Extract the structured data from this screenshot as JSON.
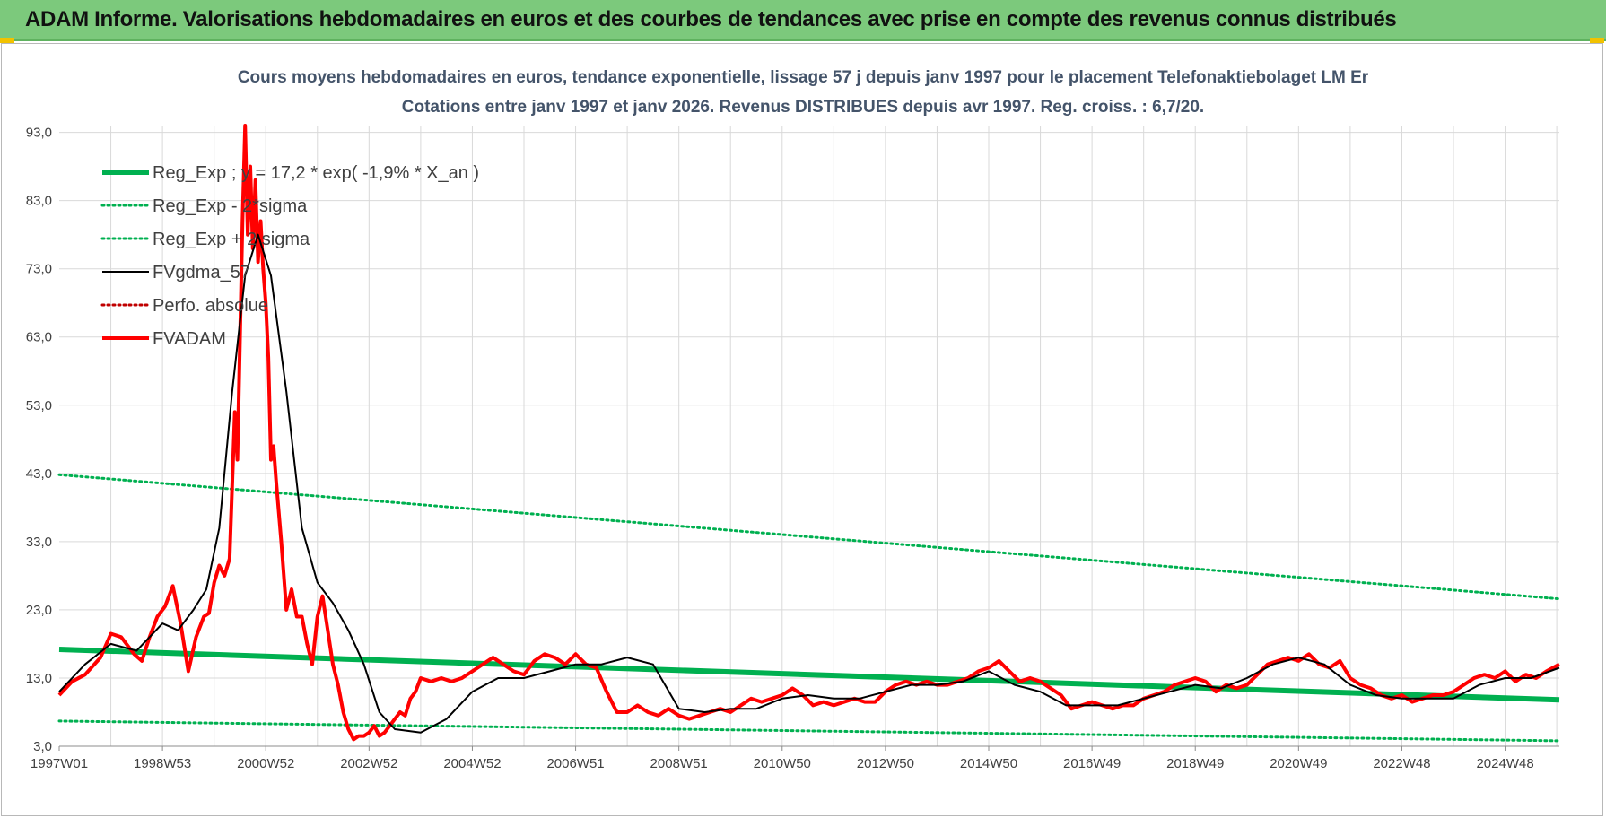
{
  "header": {
    "banner_title": "ADAM Informe. Valorisations hebdomadaires en euros et des courbes de tendances avec prise en compte des revenus connus distribués"
  },
  "colors": {
    "banner_bg": "#7cc97c",
    "reg_exp": "#00b050",
    "fvgdma": "#000000",
    "perfo": "#c00000",
    "fvadam": "#ff0000",
    "grid": "#d9d9d9"
  },
  "chart_data": {
    "type": "line",
    "title_lines": [
      "Cours moyens hebdomadaires en euros, tendance exponentielle, lissage 57 j depuis janv 1997  pour le placement Telefonaktiebolaget LM Er",
      "Cotations entre janv 1997 et janv 2026. Revenus DISTRIBUES depuis avr 1997. Reg. croiss. : 6,7/20."
    ],
    "x_range_years": [
      1997.0,
      2026.05
    ],
    "ylim": [
      3.0,
      94.0
    ],
    "y_ticks": [
      3.0,
      13.0,
      23.0,
      33.0,
      43.0,
      53.0,
      63.0,
      73.0,
      83.0,
      93.0
    ],
    "y_tick_labels": [
      "3,0",
      "13,0",
      "23,0",
      "33,0",
      "43,0",
      "53,0",
      "63,0",
      "73,0",
      "83,0",
      "93,0"
    ],
    "x_ticks": [
      {
        "label": "1997W01",
        "year": 1997.0
      },
      {
        "label": "1998W53",
        "year": 1999.0
      },
      {
        "label": "2000W52",
        "year": 2001.0
      },
      {
        "label": "2002W52",
        "year": 2003.0
      },
      {
        "label": "2004W52",
        "year": 2005.0
      },
      {
        "label": "2006W51",
        "year": 2007.0
      },
      {
        "label": "2008W51",
        "year": 2009.0
      },
      {
        "label": "2010W50",
        "year": 2011.0
      },
      {
        "label": "2012W50",
        "year": 2013.0
      },
      {
        "label": "2014W50",
        "year": 2015.0
      },
      {
        "label": "2016W49",
        "year": 2017.0
      },
      {
        "label": "2018W49",
        "year": 2019.0
      },
      {
        "label": "2020W49",
        "year": 2021.0
      },
      {
        "label": "2022W48",
        "year": 2023.0
      },
      {
        "label": "2024W48",
        "year": 2025.0
      }
    ],
    "grid": true,
    "legend_position": "top-left",
    "series": [
      {
        "name": "Reg_Exp ; y = 17,2 * exp( -1,9% *  X_an )",
        "style": "solid-thick",
        "color": "#00b050",
        "x": [
          1997.0,
          2026.05
        ],
        "y": [
          17.2,
          9.8
        ]
      },
      {
        "name": "Reg_Exp - 2*sigma",
        "style": "dotted",
        "color": "#00b050",
        "x": [
          1997.0,
          2026.05
        ],
        "y": [
          6.7,
          3.8
        ]
      },
      {
        "name": "Reg_Exp + 2 sigma",
        "style": "dotted",
        "color": "#00b050",
        "x": [
          1997.0,
          2026.05
        ],
        "y": [
          42.8,
          24.6
        ]
      },
      {
        "name": "FVgdma_57",
        "style": "solid-thin",
        "color": "#000000",
        "x": [
          1997.0,
          1997.5,
          1998.0,
          1998.5,
          1999.0,
          1999.3,
          1999.6,
          1999.85,
          2000.1,
          2000.35,
          2000.6,
          2000.85,
          2001.1,
          2001.4,
          2001.7,
          2002.0,
          2002.3,
          2002.6,
          2002.9,
          2003.2,
          2003.5,
          2004.0,
          2004.5,
          2005.0,
          2005.5,
          2006.0,
          2006.5,
          2007.0,
          2007.5,
          2008.0,
          2008.5,
          2009.0,
          2009.5,
          2010.0,
          2010.5,
          2011.0,
          2011.5,
          2012.0,
          2012.5,
          2013.0,
          2013.5,
          2014.0,
          2014.5,
          2015.0,
          2015.5,
          2016.0,
          2016.5,
          2017.0,
          2017.5,
          2018.0,
          2018.5,
          2019.0,
          2019.5,
          2020.0,
          2020.5,
          2021.0,
          2021.5,
          2022.0,
          2022.5,
          2023.0,
          2023.5,
          2024.0,
          2024.5,
          2025.0,
          2025.5,
          2026.05
        ],
        "y": [
          11.0,
          15.0,
          18.0,
          17.0,
          21.0,
          20.0,
          23.0,
          26.0,
          35.0,
          55.0,
          72.0,
          78.0,
          72.0,
          55.0,
          35.0,
          27.0,
          24.0,
          20.0,
          15.0,
          8.0,
          5.5,
          5.0,
          7.0,
          11.0,
          13.0,
          13.0,
          14.0,
          15.0,
          15.0,
          16.0,
          15.0,
          8.5,
          8.0,
          8.5,
          8.5,
          10.0,
          10.5,
          10.0,
          10.0,
          11.0,
          12.0,
          12.0,
          12.5,
          14.0,
          12.0,
          11.0,
          9.0,
          9.0,
          9.0,
          10.0,
          11.0,
          12.0,
          11.5,
          13.0,
          15.0,
          16.0,
          15.0,
          12.0,
          10.5,
          10.0,
          10.0,
          10.0,
          12.0,
          13.0,
          13.0,
          14.5
        ]
      },
      {
        "name": "Perfo. absolue",
        "style": "dotted",
        "color": "#c00000",
        "x": [],
        "y": []
      },
      {
        "name": "FVADAM",
        "style": "solid-thick",
        "color": "#ff0000",
        "x": [
          1997.0,
          1997.25,
          1997.5,
          1997.8,
          1998.0,
          1998.2,
          1998.45,
          1998.6,
          1998.75,
          1998.9,
          1999.05,
          1999.2,
          1999.35,
          1999.5,
          1999.65,
          1999.8,
          1999.9,
          2000.0,
          2000.1,
          2000.2,
          2000.3,
          2000.4,
          2000.45,
          2000.5,
          2000.55,
          2000.6,
          2000.65,
          2000.7,
          2000.75,
          2000.8,
          2000.85,
          2000.9,
          2000.95,
          2001.0,
          2001.05,
          2001.1,
          2001.15,
          2001.2,
          2001.3,
          2001.4,
          2001.5,
          2001.6,
          2001.7,
          2001.8,
          2001.9,
          2002.0,
          2002.1,
          2002.2,
          2002.3,
          2002.4,
          2002.5,
          2002.6,
          2002.7,
          2002.8,
          2002.9,
          2003.0,
          2003.1,
          2003.2,
          2003.3,
          2003.4,
          2003.5,
          2003.6,
          2003.7,
          2003.8,
          2003.9,
          2004.0,
          2004.2,
          2004.4,
          2004.6,
          2004.8,
          2005.0,
          2005.2,
          2005.4,
          2005.6,
          2005.8,
          2006.0,
          2006.2,
          2006.4,
          2006.6,
          2006.8,
          2007.0,
          2007.2,
          2007.4,
          2007.6,
          2007.8,
          2008.0,
          2008.2,
          2008.4,
          2008.6,
          2008.8,
          2009.0,
          2009.2,
          2009.4,
          2009.6,
          2009.8,
          2010.0,
          2010.2,
          2010.4,
          2010.6,
          2010.8,
          2011.0,
          2011.2,
          2011.4,
          2011.6,
          2011.8,
          2012.0,
          2012.2,
          2012.4,
          2012.6,
          2012.8,
          2013.0,
          2013.2,
          2013.4,
          2013.6,
          2013.8,
          2014.0,
          2014.2,
          2014.4,
          2014.6,
          2014.8,
          2015.0,
          2015.2,
          2015.4,
          2015.6,
          2015.8,
          2016.0,
          2016.2,
          2016.4,
          2016.6,
          2016.8,
          2017.0,
          2017.2,
          2017.4,
          2017.6,
          2017.8,
          2018.0,
          2018.2,
          2018.4,
          2018.6,
          2018.8,
          2019.0,
          2019.2,
          2019.4,
          2019.6,
          2019.8,
          2020.0,
          2020.2,
          2020.4,
          2020.6,
          2020.8,
          2021.0,
          2021.2,
          2021.4,
          2021.6,
          2021.8,
          2022.0,
          2022.2,
          2022.4,
          2022.6,
          2022.8,
          2023.0,
          2023.2,
          2023.4,
          2023.6,
          2023.8,
          2024.0,
          2024.2,
          2024.4,
          2024.6,
          2024.8,
          2025.0,
          2025.2,
          2025.4,
          2025.6,
          2025.8,
          2026.05
        ],
        "y": [
          10.5,
          12.5,
          13.5,
          16.0,
          19.5,
          19.0,
          16.5,
          15.5,
          19.0,
          22.0,
          23.5,
          26.5,
          21.0,
          14.0,
          19.0,
          22.0,
          22.5,
          27.0,
          29.5,
          28.0,
          30.5,
          52.0,
          45.0,
          62.0,
          80.0,
          94.0,
          78.0,
          88.0,
          76.0,
          86.0,
          74.0,
          80.0,
          73.0,
          68.0,
          60.0,
          45.0,
          47.0,
          42.0,
          33.0,
          23.0,
          26.0,
          22.0,
          22.0,
          18.0,
          15.0,
          22.0,
          25.0,
          20.0,
          15.0,
          12.0,
          8.0,
          5.5,
          4.0,
          4.5,
          4.5,
          5.0,
          6.0,
          4.5,
          5.0,
          6.0,
          7.0,
          8.0,
          7.5,
          10.0,
          11.0,
          13.0,
          12.5,
          13.0,
          12.5,
          13.0,
          14.0,
          15.0,
          16.0,
          15.0,
          14.0,
          13.5,
          15.5,
          16.5,
          16.0,
          15.0,
          16.5,
          15.0,
          14.5,
          11.0,
          8.0,
          8.0,
          9.0,
          8.0,
          7.5,
          8.5,
          7.5,
          7.0,
          7.5,
          8.0,
          8.5,
          8.0,
          9.0,
          10.0,
          9.5,
          10.0,
          10.5,
          11.5,
          10.5,
          9.0,
          9.5,
          9.0,
          9.5,
          10.0,
          9.5,
          9.5,
          11.0,
          12.0,
          12.5,
          12.0,
          12.5,
          12.0,
          12.0,
          12.5,
          13.0,
          14.0,
          14.5,
          15.5,
          14.0,
          12.5,
          13.0,
          12.5,
          11.5,
          10.5,
          8.5,
          9.0,
          9.5,
          9.0,
          8.5,
          9.0,
          9.0,
          10.0,
          10.5,
          11.0,
          12.0,
          12.5,
          13.0,
          12.5,
          11.0,
          12.0,
          11.5,
          12.0,
          13.5,
          15.0,
          15.5,
          16.0,
          15.5,
          16.5,
          15.0,
          14.5,
          15.5,
          13.0,
          12.0,
          11.5,
          10.5,
          10.0,
          10.5,
          9.5,
          10.0,
          10.5,
          10.5,
          11.0,
          12.0,
          13.0,
          13.5,
          13.0,
          14.0,
          12.5,
          13.5,
          13.0,
          14.0,
          15.0
        ]
      }
    ]
  }
}
